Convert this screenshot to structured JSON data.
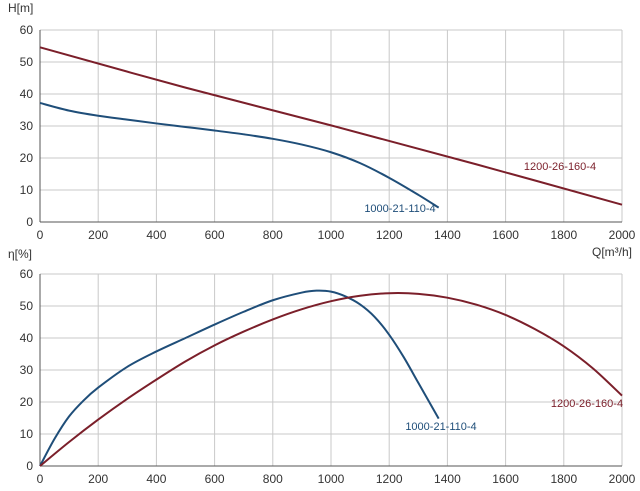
{
  "chart_data": [
    {
      "type": "line",
      "title": "",
      "xlabel": "Q[m³/h]",
      "ylabel": "H[m]",
      "xlim": [
        0,
        2000
      ],
      "ylim": [
        0,
        60
      ],
      "xticks": [
        "0",
        "200",
        "400",
        "600",
        "800",
        "1000",
        "1200",
        "1400",
        "1600",
        "1800",
        "2000"
      ],
      "yticks": [
        "0",
        "10",
        "20",
        "30",
        "40",
        "50",
        "60"
      ],
      "grid": true,
      "series": [
        {
          "name": "1000-21-110-4",
          "color": "#1f4e79",
          "x": [
            0,
            100,
            200,
            300,
            400,
            500,
            600,
            700,
            800,
            900,
            1000,
            1100,
            1200,
            1300,
            1370
          ],
          "y": [
            37.2,
            34.8,
            33.2,
            32.0,
            30.8,
            29.7,
            28.6,
            27.4,
            26.0,
            24.2,
            21.8,
            18.4,
            13.8,
            8.5,
            4.5
          ]
        },
        {
          "name": "1200-26-160-4",
          "color": "#7b1f2a",
          "x": [
            0,
            500,
            1000,
            1500,
            2000
          ],
          "y": [
            54.6,
            42.0,
            30.2,
            18.0,
            5.4
          ]
        }
      ]
    },
    {
      "type": "line",
      "title": "",
      "xlabel": "",
      "ylabel": "η[%]",
      "xlim": [
        0,
        2000
      ],
      "ylim": [
        0,
        60
      ],
      "xticks": [
        "0",
        "200",
        "400",
        "600",
        "800",
        "1000",
        "1200",
        "1400",
        "1600",
        "1800",
        "2000"
      ],
      "yticks": [
        "0",
        "10",
        "20",
        "30",
        "40",
        "50",
        "60"
      ],
      "grid": true,
      "series": [
        {
          "name": "1000-21-110-4",
          "color": "#1f4e79",
          "x": [
            0,
            50,
            100,
            150,
            200,
            300,
            400,
            500,
            600,
            700,
            800,
            900,
            950,
            1000,
            1050,
            1100,
            1150,
            1200,
            1250,
            1300,
            1350,
            1370
          ],
          "y": [
            0,
            8.5,
            15.5,
            20.5,
            24.5,
            31.0,
            35.8,
            40.0,
            44.2,
            48.2,
            51.8,
            54.2,
            54.8,
            54.5,
            53.0,
            50.5,
            46.6,
            41.0,
            34.0,
            26.0,
            18.0,
            14.8
          ]
        },
        {
          "name": "1200-26-160-4",
          "color": "#7b1f2a",
          "x": [
            0,
            100,
            200,
            300,
            400,
            500,
            600,
            700,
            800,
            900,
            1000,
            1100,
            1200,
            1300,
            1400,
            1500,
            1600,
            1700,
            1800,
            1900,
            2000
          ],
          "y": [
            0,
            7.5,
            14.5,
            21.0,
            27.0,
            32.7,
            37.7,
            42.0,
            45.8,
            49.0,
            51.5,
            53.2,
            54.0,
            53.8,
            52.6,
            50.4,
            47.2,
            42.8,
            37.4,
            30.5,
            22.0
          ]
        }
      ]
    }
  ]
}
